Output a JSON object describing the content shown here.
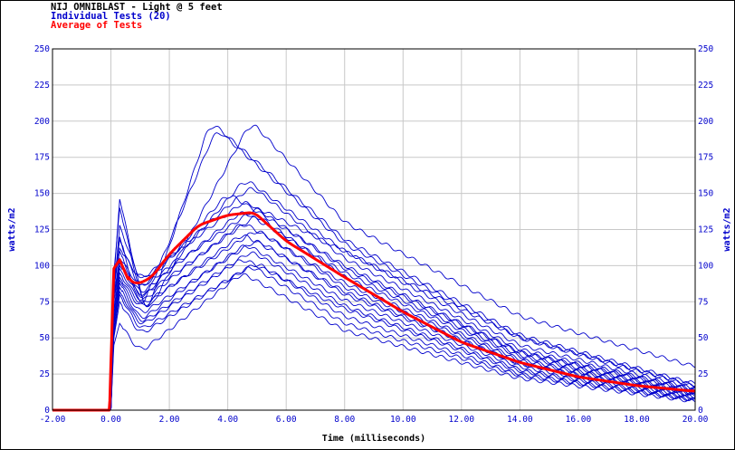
{
  "chart_data": {
    "type": "line",
    "title_lines": [
      {
        "text": "NIJ OMNIBLAST - Light @ 5 feet",
        "color": "#000000"
      },
      {
        "text": "Individual Tests (20)",
        "color": "#0000cc"
      },
      {
        "text": "Average of Tests",
        "color": "#ff0000"
      }
    ],
    "xlabel": "Time (milliseconds)",
    "ylabel": "watts/m2",
    "ylabel_right": "watts/m2",
    "xlim": [
      -2,
      20
    ],
    "ylim": [
      0,
      250
    ],
    "x_ticks": [
      -2,
      0,
      2,
      4,
      6,
      8,
      10,
      12,
      14,
      16,
      18,
      20
    ],
    "x_tick_labels": [
      "-2.00",
      "0.00",
      "2.00",
      "4.00",
      "6.00",
      "8.00",
      "10.00",
      "12.00",
      "14.00",
      "16.00",
      "18.00",
      "20.00"
    ],
    "y_ticks": [
      0,
      25,
      50,
      75,
      100,
      125,
      150,
      175,
      200,
      225,
      250
    ],
    "y_tick_labels": [
      "0",
      "25",
      "50",
      "75",
      "100",
      "125",
      "150",
      "175",
      "200",
      "225",
      "250"
    ],
    "grid": true,
    "colors": {
      "individual": "#0000cc",
      "average": "#ff0000",
      "grid": "#c8c8c8",
      "axis_text": "#0000cc"
    },
    "series": [
      {
        "name": "Individual Tests (20)",
        "kind": "individual",
        "curves": [
          {
            "x": [
              -2,
              0,
              0.1,
              0.3,
              1.2,
              3.4,
              8,
              14,
              20
            ],
            "y": [
              0,
              0,
              95,
              140,
              64,
              200,
              118,
              52,
              18
            ]
          },
          {
            "x": [
              -2,
              0,
              0.1,
              0.3,
              1.2,
              4.8,
              8,
              14,
              20
            ],
            "y": [
              0,
              0,
              90,
              146,
              65,
              200,
              130,
              65,
              30
            ]
          },
          {
            "x": [
              -2,
              0,
              0.1,
              0.3,
              1.0,
              3.6,
              8,
              14,
              20
            ],
            "y": [
              0,
              0,
              85,
              120,
              68,
              195,
              115,
              50,
              17
            ]
          },
          {
            "x": [
              -2,
              0,
              0.1,
              0.3,
              1.0,
              4.6,
              8,
              14,
              20
            ],
            "y": [
              0,
              0,
              85,
              110,
              75,
              160,
              110,
              45,
              15
            ]
          },
          {
            "x": [
              -2,
              0,
              0.1,
              0.3,
              1.0,
              4.8,
              8,
              14,
              20
            ],
            "y": [
              0,
              0,
              80,
              128,
              88,
              155,
              105,
              42,
              14
            ]
          },
          {
            "x": [
              -2,
              0,
              0.1,
              0.3,
              1.0,
              4.0,
              8,
              14,
              20
            ],
            "y": [
              0,
              0,
              90,
              118,
              82,
              150,
              100,
              40,
              14
            ]
          },
          {
            "x": [
              -2,
              0,
              0.1,
              0.3,
              1.0,
              4.6,
              8,
              14,
              20
            ],
            "y": [
              0,
              0,
              88,
              112,
              90,
              145,
              98,
              40,
              13
            ]
          },
          {
            "x": [
              -2,
              0,
              0.1,
              0.3,
              1.0,
              5.0,
              8,
              14,
              20
            ],
            "y": [
              0,
              0,
              80,
              105,
              85,
              140,
              110,
              50,
              16
            ]
          },
          {
            "x": [
              -2,
              0,
              0.1,
              0.3,
              1.0,
              4.5,
              8,
              14,
              20
            ],
            "y": [
              0,
              0,
              78,
              102,
              80,
              138,
              95,
              38,
              12
            ]
          },
          {
            "x": [
              -2,
              0,
              0.1,
              0.3,
              1.0,
              5.0,
              8,
              14,
              20
            ],
            "y": [
              0,
              0,
              75,
              100,
              78,
              135,
              92,
              37,
              12
            ]
          },
          {
            "x": [
              -2,
              0,
              0.1,
              0.3,
              1.0,
              4.5,
              8,
              14,
              20
            ],
            "y": [
              0,
              0,
              70,
              98,
              74,
              130,
              88,
              35,
              11
            ]
          },
          {
            "x": [
              -2,
              0,
              0.1,
              0.3,
              1.0,
              5.0,
              8,
              14,
              20
            ],
            "y": [
              0,
              0,
              68,
              95,
              72,
              125,
              85,
              34,
              11
            ]
          },
          {
            "x": [
              -2,
              0,
              0.1,
              0.3,
              1.0,
              4.5,
              8,
              14,
              20
            ],
            "y": [
              0,
              0,
              65,
              92,
              70,
              122,
              82,
              32,
              10
            ]
          },
          {
            "x": [
              -2,
              0,
              0.1,
              0.3,
              1.0,
              5.0,
              8,
              14,
              20
            ],
            "y": [
              0,
              0,
              62,
              90,
              66,
              118,
              80,
              32,
              10
            ]
          },
          {
            "x": [
              -2,
              0,
              0.1,
              0.3,
              1.0,
              4.6,
              8,
              14,
              20
            ],
            "y": [
              0,
              0,
              60,
              88,
              62,
              115,
              76,
              30,
              9
            ]
          },
          {
            "x": [
              -2,
              0,
              0.1,
              0.3,
              1.0,
              4.8,
              8,
              14,
              20
            ],
            "y": [
              0,
              0,
              58,
              85,
              60,
              110,
              72,
              28,
              8
            ]
          },
          {
            "x": [
              -2,
              0,
              0.1,
              0.3,
              1.0,
              4.5,
              8,
              14,
              20
            ],
            "y": [
              0,
              0,
              55,
              82,
              58,
              105,
              70,
              27,
              8
            ]
          },
          {
            "x": [
              -2,
              0,
              0.1,
              0.3,
              1.0,
              5.0,
              8,
              14,
              20
            ],
            "y": [
              0,
              0,
              52,
              80,
              55,
              102,
              65,
              25,
              7
            ]
          },
          {
            "x": [
              -2,
              0,
              0.1,
              0.3,
              1.0,
              4.8,
              8,
              14,
              20
            ],
            "y": [
              0,
              0,
              50,
              75,
              52,
              100,
              60,
              24,
              7
            ]
          },
          {
            "x": [
              -2,
              0,
              0.1,
              0.3,
              1.0,
              4.5,
              8,
              14,
              20
            ],
            "y": [
              0,
              0,
              45,
              60,
              40,
              95,
              55,
              22,
              6
            ]
          }
        ]
      },
      {
        "name": "Average of Tests",
        "kind": "average",
        "x": [
          -2,
          -0.05,
          0.1,
          0.3,
          0.6,
          0.9,
          1.4,
          2.0,
          3.0,
          4.0,
          4.9,
          6.0,
          8.0,
          10.0,
          12.0,
          14.0,
          16.0,
          18.0,
          20.0
        ],
        "y": [
          0,
          0,
          98,
          104,
          90,
          87,
          92,
          108,
          128,
          135,
          137,
          117,
          92,
          68,
          47,
          33,
          23,
          17,
          13
        ]
      }
    ]
  }
}
